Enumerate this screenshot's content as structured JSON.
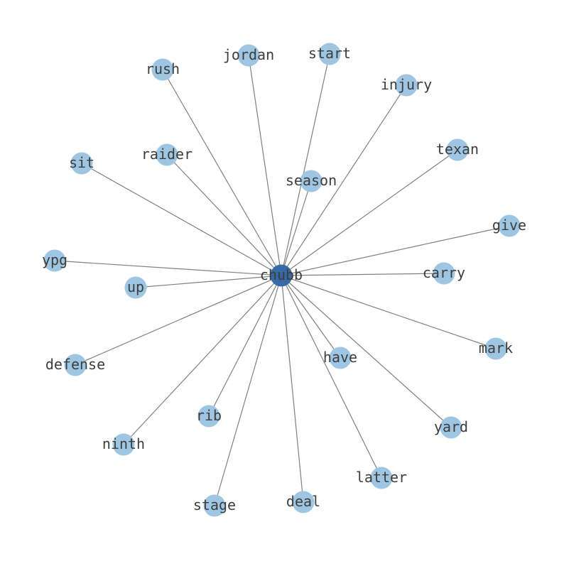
{
  "graph": {
    "center": "chubb",
    "nodes": [
      "jordan",
      "start",
      "rush",
      "injury",
      "texan",
      "raider",
      "sit",
      "season",
      "give",
      "ypg",
      "up",
      "carry",
      "mark",
      "defense",
      "have",
      "yard",
      "rib",
      "ninth",
      "latter",
      "stage",
      "deal"
    ],
    "colors": {
      "center_node": "#2f65a3",
      "leaf_node": "#9ec6e3",
      "edge": "#808080",
      "label": "#3d3d3d"
    }
  }
}
